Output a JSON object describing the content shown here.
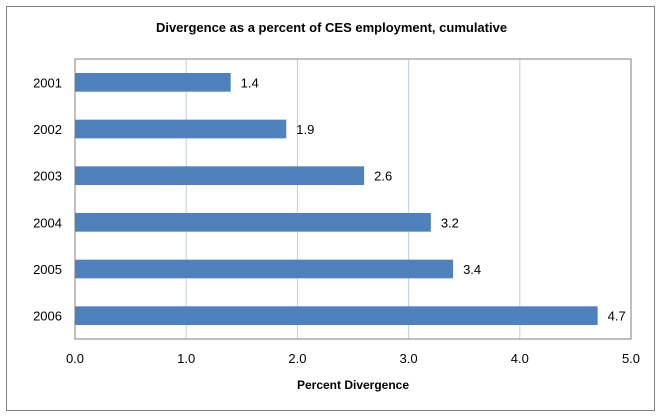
{
  "chart_data": {
    "type": "bar",
    "orientation": "horizontal",
    "title": "Divergence as a percent of CES employment, cumulative",
    "xlabel": "Percent Divergence",
    "ylabel": "",
    "categories": [
      "2001",
      "2002",
      "2003",
      "2004",
      "2005",
      "2006"
    ],
    "values": [
      1.4,
      1.9,
      2.6,
      3.2,
      3.4,
      4.7
    ],
    "data_labels": [
      "1.4",
      "1.9",
      "2.6",
      "3.2",
      "3.4",
      "4.7"
    ],
    "xlim": [
      0,
      5
    ],
    "x_ticks": [
      "0.0",
      "1.0",
      "2.0",
      "3.0",
      "4.0",
      "5.0"
    ],
    "grid": "vertical",
    "legend": "none",
    "colors": {
      "bar": "#4F81BD",
      "grid": "#C0CFE0",
      "axis": "#7F7F7F"
    }
  }
}
